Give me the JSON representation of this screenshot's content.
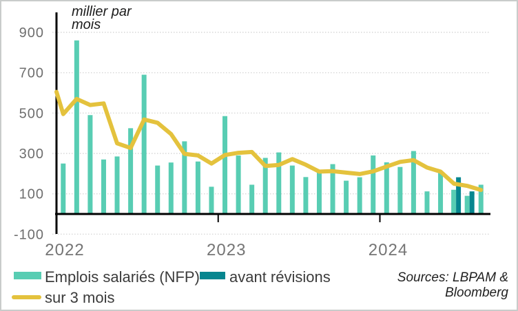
{
  "annotation": {
    "text": "millier par\nmois"
  },
  "legend": {
    "items": [
      {
        "label": "Emplois salariés (NFP)",
        "type": "bar",
        "color": "#58cdb3"
      },
      {
        "label": "avant révisions",
        "type": "bar",
        "color": "#06868f"
      },
      {
        "label": "sur 3 mois",
        "type": "line",
        "color": "#e4c23d"
      }
    ]
  },
  "source": {
    "text": "Sources: LBPAM &\nBloomberg"
  },
  "colors": {
    "nfp_bar": "#58cdb3",
    "revision_bar": "#06868f",
    "avg_line": "#e4c23d",
    "gridline": "#d7d7d7",
    "axis": "#000000",
    "tick_label": "#6e6e6e"
  },
  "chart_data": {
    "type": "bar+line",
    "unit_label": "millier par mois",
    "x": [
      "2022-01",
      "2022-02",
      "2022-03",
      "2022-04",
      "2022-05",
      "2022-06",
      "2022-07",
      "2022-08",
      "2022-09",
      "2022-10",
      "2022-11",
      "2022-12",
      "2023-01",
      "2023-02",
      "2023-03",
      "2023-04",
      "2023-05",
      "2023-06",
      "2023-07",
      "2023-08",
      "2023-09",
      "2023-10",
      "2023-11",
      "2023-12",
      "2024-01",
      "2024-02",
      "2024-03",
      "2024-04",
      "2024-05",
      "2024-06",
      "2024-07",
      "2024-08"
    ],
    "series": [
      {
        "name": "Emplois salariés (NFP)",
        "type": "bar",
        "color": "#58cdb3",
        "values": [
          250,
          860,
          490,
          270,
          285,
          425,
          690,
          240,
          255,
          360,
          260,
          135,
          485,
          290,
          145,
          278,
          305,
          240,
          183,
          208,
          247,
          165,
          182,
          290,
          256,
          233,
          312,
          112,
          208,
          120,
          90,
          145
        ]
      },
      {
        "name": "avant révisions",
        "type": "bar",
        "color": "#06868f",
        "values": [
          null,
          null,
          null,
          null,
          null,
          null,
          null,
          null,
          null,
          null,
          null,
          null,
          null,
          null,
          null,
          null,
          null,
          null,
          null,
          null,
          null,
          null,
          null,
          null,
          null,
          null,
          null,
          null,
          null,
          182,
          112,
          null
        ]
      },
      {
        "name": "sur 3 mois",
        "type": "line",
        "color": "#e4c23d",
        "lead_value": 605,
        "values": [
          495,
          570,
          540,
          548,
          350,
          327,
          468,
          452,
          396,
          298,
          290,
          250,
          292,
          303,
          307,
          238,
          243,
          272,
          244,
          210,
          212,
          205,
          198,
          211,
          235,
          258,
          267,
          230,
          210,
          150,
          139,
          119
        ]
      }
    ],
    "ylim": [
      -100,
      900
    ],
    "yticks": [
      900,
      700,
      500,
      300,
      100,
      -100
    ],
    "year_ticks": [
      {
        "label": "2022",
        "month_index": 0
      },
      {
        "label": "2023",
        "month_index": 12
      },
      {
        "label": "2024",
        "month_index": 24
      }
    ],
    "grid": "horizontal-dotted",
    "legend_position": "bottom-left"
  }
}
